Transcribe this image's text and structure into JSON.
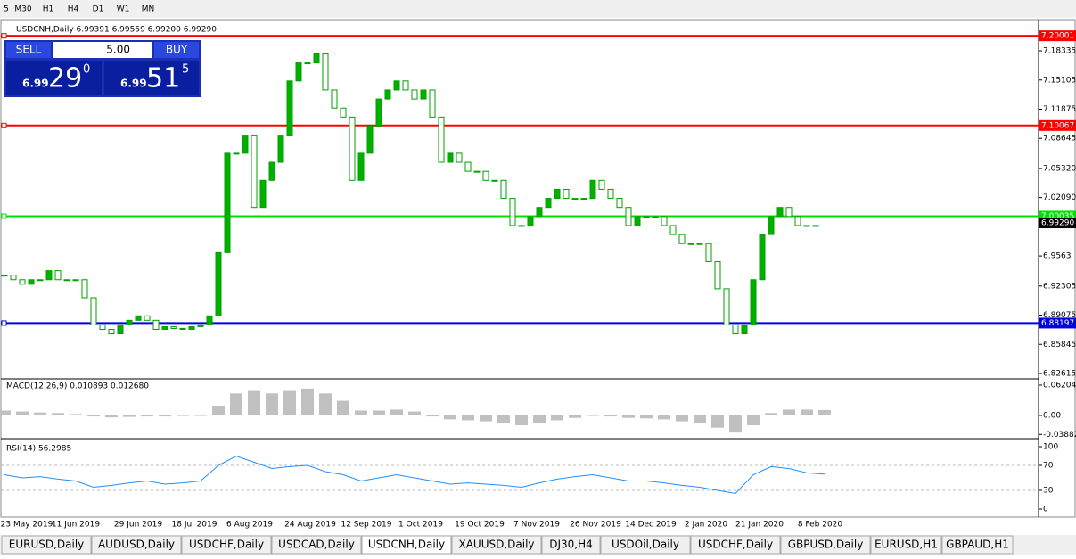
{
  "toolbar": {
    "timeframes": [
      "5",
      "M30",
      "H1",
      "H4",
      "D1",
      "W1",
      "MN"
    ]
  },
  "chart_data": {
    "type": "candlestick",
    "title": "USDCNH,Daily  6.99391 6.99559 6.99200 6.99290",
    "trade_panel": {
      "sell": "SELL",
      "buy": "BUY",
      "lots": "5.00",
      "sell_price": {
        "prefix": "6.99",
        "big": "29",
        "sup": "0"
      },
      "buy_price": {
        "prefix": "6.99",
        "big": "51",
        "sup": "5"
      }
    },
    "ylim": [
      6.8212,
      7.212
    ],
    "yticks": [
      7.18335,
      7.15105,
      7.11875,
      7.08645,
      {
        "value": 7.0532,
        "label": "7.05320"
      },
      {
        "value": 7.0209,
        "label": "7.02090"
      },
      6.9563,
      6.92305,
      6.89075,
      6.85845,
      6.82615
    ],
    "levels": [
      {
        "value": 7.20001,
        "color": "#ff0000"
      },
      {
        "value": 7.10067,
        "color": "#ff0000"
      },
      {
        "value": 7.00035,
        "color": "#00e000"
      },
      {
        "value": 6.88197,
        "color": "#0000e0"
      }
    ],
    "current_price": {
      "value": 6.9929,
      "label": "6.99290"
    },
    "closes": [
      6.935,
      6.93,
      6.925,
      6.93,
      6.93,
      6.94,
      6.93,
      6.93,
      6.93,
      6.91,
      6.88,
      6.875,
      6.87,
      6.88,
      6.885,
      6.89,
      6.885,
      6.875,
      6.878,
      6.876,
      6.875,
      6.878,
      6.88,
      6.89,
      6.96,
      7.07,
      7.07,
      7.09,
      7.01,
      7.04,
      7.06,
      7.09,
      7.15,
      7.17,
      7.17,
      7.18,
      7.14,
      7.12,
      7.11,
      7.04,
      7.07,
      7.1,
      7.13,
      7.14,
      7.15,
      7.14,
      7.13,
      7.14,
      7.11,
      7.06,
      7.07,
      7.06,
      7.05,
      7.05,
      7.04,
      7.04,
      7.02,
      6.99,
      6.99,
      7.0,
      7.01,
      7.02,
      7.03,
      7.02,
      7.02,
      7.02,
      7.04,
      7.03,
      7.02,
      7.01,
      6.99,
      7.0,
      7.0,
      7.0,
      6.99,
      6.98,
      6.97,
      6.97,
      6.97,
      6.95,
      6.92,
      6.88,
      6.87,
      6.88,
      6.93,
      6.98,
      7.0,
      7.01,
      7.0,
      6.99,
      6.99,
      6.99
    ],
    "x_labels": [
      "23 May 2019",
      "11 Jun 2019",
      "29 Jun 2019",
      "18 Jul 2019",
      "6 Aug 2019",
      "24 Aug 2019",
      "12 Sep 2019",
      "1 Oct 2019",
      "19 Oct 2019",
      "7 Nov 2019",
      "26 Nov 2019",
      "14 Dec 2019",
      "2 Jan 2020",
      "21 Jan 2020",
      "8 Feb 2020"
    ],
    "macd": {
      "label": "MACD(12,26,9) 0.010893 0.012680",
      "ylim": [
        -0.0438,
        0.0693
      ],
      "yticks": [
        0.062042,
        {
          "value": 0,
          "label": "0.00"
        },
        -0.038821
      ],
      "values": [
        0.01,
        0.008,
        0.006,
        0.005,
        0.003,
        -0.002,
        -0.004,
        -0.003,
        -0.002,
        -0.002,
        -0.001,
        0.0,
        0.02,
        0.045,
        0.05,
        0.045,
        0.05,
        0.055,
        0.045,
        0.03,
        0.01,
        0.01,
        0.012,
        0.008,
        -0.002,
        -0.008,
        -0.01,
        -0.012,
        -0.015,
        -0.02,
        -0.015,
        -0.01,
        -0.005,
        0.0,
        -0.002,
        -0.005,
        -0.006,
        -0.008,
        -0.012,
        -0.015,
        -0.025,
        -0.035,
        -0.02,
        0.005,
        0.012,
        0.012,
        0.011
      ]
    },
    "rsi": {
      "label": "RSI(14) 56.2985",
      "ylim": [
        -10,
        110
      ],
      "yticks": [
        100,
        70,
        30,
        0
      ],
      "values": [
        55,
        50,
        52,
        48,
        45,
        35,
        38,
        42,
        45,
        40,
        42,
        45,
        70,
        85,
        75,
        65,
        68,
        70,
        60,
        55,
        45,
        50,
        55,
        50,
        45,
        40,
        42,
        40,
        38,
        35,
        42,
        48,
        52,
        55,
        50,
        45,
        45,
        42,
        38,
        35,
        30,
        25,
        55,
        68,
        65,
        58,
        56
      ]
    }
  },
  "tabs": [
    "EURUSD,Daily",
    "AUDUSD,Daily",
    "USDCHF,Daily",
    "USDCAD,Daily",
    "USDCNH,Daily",
    "XAUUSD,Daily",
    "DJ30,H4",
    "USDOil,Daily",
    "USDCHF,Daily",
    "GBPUSD,Daily",
    "EURUSD,H1",
    "GBPAUD,H1"
  ]
}
